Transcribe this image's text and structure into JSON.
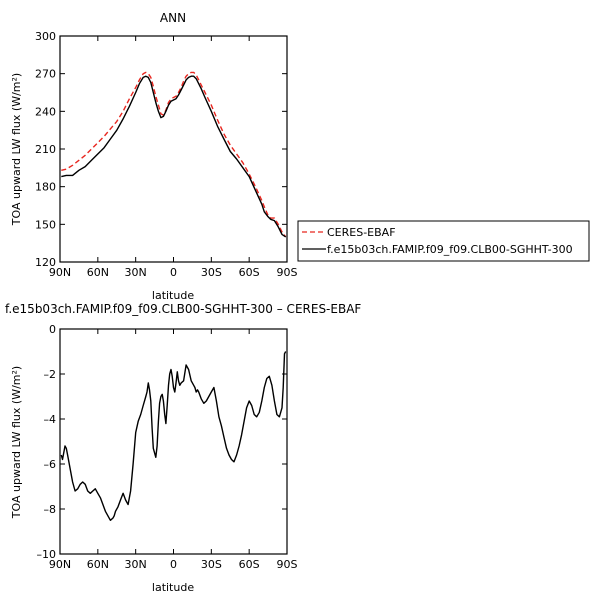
{
  "chart_data": [
    {
      "type": "line",
      "title": "ANN",
      "xlabel": "latitude",
      "ylabel": "TOA upward LW flux (W/m²)",
      "xlim": [
        90,
        -90
      ],
      "ylim": [
        120,
        300
      ],
      "xticks": [
        90,
        60,
        30,
        0,
        -30,
        -60,
        -90
      ],
      "xtick_labels": [
        "90N",
        "60N",
        "30N",
        "0",
        "30S",
        "60S",
        "90S"
      ],
      "yticks": [
        120,
        150,
        180,
        210,
        240,
        270,
        300
      ],
      "ytick_labels": [
        "120",
        "150",
        "180",
        "210",
        "240",
        "270",
        "300"
      ],
      "legend_position": "right",
      "colors": {
        "CERES-EBAF": "#e8261f",
        "model": "#000000"
      },
      "series": [
        {
          "name": "CERES-EBAF",
          "style": "dashed",
          "x": [
            89,
            85,
            80,
            75,
            70,
            65,
            60,
            55,
            50,
            45,
            40,
            35,
            30,
            27,
            24,
            22,
            20,
            18,
            16,
            14,
            12,
            10,
            8,
            6,
            4,
            2,
            0,
            -2,
            -4,
            -6,
            -8,
            -10,
            -12,
            -14,
            -16,
            -18,
            -20,
            -22,
            -25,
            -30,
            -35,
            -40,
            -45,
            -50,
            -55,
            -60,
            -65,
            -70,
            -72,
            -75,
            -77,
            -80,
            -83,
            -86,
            -89
          ],
          "y": [
            193,
            194,
            197,
            201,
            205,
            210,
            215,
            220,
            226,
            232,
            240,
            250,
            259,
            265,
            270,
            271,
            270,
            267,
            260,
            252,
            245,
            238,
            237,
            241,
            247,
            250,
            251,
            252,
            255,
            259,
            264,
            268,
            270,
            271,
            271,
            269,
            265,
            261,
            255,
            245,
            233,
            222,
            213,
            206,
            199,
            190,
            180,
            169,
            164,
            157,
            155,
            155,
            150,
            144,
            140
          ]
        },
        {
          "name": "f.e15b03ch.FAMIP.f09_f09.CLB00-SGHHT-300",
          "style": "solid",
          "x": [
            89,
            85,
            80,
            75,
            70,
            65,
            60,
            55,
            50,
            45,
            40,
            35,
            30,
            27,
            24,
            22,
            20,
            18,
            16,
            14,
            12,
            10,
            8,
            6,
            4,
            2,
            0,
            -2,
            -4,
            -6,
            -8,
            -10,
            -12,
            -14,
            -16,
            -18,
            -20,
            -22,
            -25,
            -30,
            -35,
            -40,
            -45,
            -50,
            -55,
            -60,
            -65,
            -70,
            -72,
            -75,
            -77,
            -80,
            -83,
            -86,
            -89
          ],
          "y": [
            188,
            189,
            189,
            193,
            196,
            201,
            206,
            211,
            218,
            225,
            234,
            244,
            255,
            262,
            267,
            268,
            267,
            263,
            255,
            247,
            240,
            235,
            236,
            240,
            245,
            248,
            249,
            250,
            253,
            257,
            261,
            265,
            267,
            268,
            268,
            266,
            262,
            258,
            251,
            240,
            228,
            218,
            208,
            202,
            195,
            188,
            177,
            166,
            160,
            156,
            154,
            153,
            148,
            142,
            140
          ]
        }
      ]
    },
    {
      "type": "line",
      "title": "f.e15b03ch.FAMIP.f09_f09.CLB00-SGHHT-300 – CERES-EBAF",
      "xlabel": "latitude",
      "ylabel": "TOA upward LW flux (W/m²)",
      "xlim": [
        90,
        -90
      ],
      "ylim": [
        -10,
        0
      ],
      "xticks": [
        90,
        60,
        30,
        0,
        -30,
        -60,
        -90
      ],
      "xtick_labels": [
        "90N",
        "60N",
        "30N",
        "0",
        "30S",
        "60S",
        "90S"
      ],
      "yticks": [
        -10,
        -8,
        -6,
        -4,
        -2,
        0
      ],
      "ytick_labels": [
        "–10",
        "–8",
        "–6",
        "–4",
        "–2",
        "0"
      ],
      "series": [
        {
          "style": "solid",
          "x": [
            89,
            88,
            86,
            85,
            84,
            82,
            80,
            78,
            76,
            74,
            72,
            70,
            68,
            66,
            64,
            62,
            60,
            58,
            56,
            54,
            52,
            50,
            48,
            47,
            46,
            44,
            42,
            40,
            38,
            36,
            34,
            32,
            30,
            28,
            26,
            24,
            22,
            21,
            20,
            19,
            18,
            17,
            16,
            14,
            13,
            12,
            11,
            10,
            9,
            8,
            7,
            6,
            5,
            4,
            3,
            2,
            1,
            0,
            -1,
            -2,
            -3,
            -4,
            -5,
            -6,
            -8,
            -10,
            -12,
            -14,
            -16,
            -17,
            -18,
            -19,
            -20,
            -22,
            -24,
            -26,
            -28,
            -30,
            -32,
            -34,
            -36,
            -38,
            -40,
            -42,
            -44,
            -46,
            -48,
            -50,
            -52,
            -54,
            -56,
            -58,
            -60,
            -62,
            -64,
            -66,
            -68,
            -70,
            -72,
            -74,
            -76,
            -78,
            -80,
            -82,
            -84,
            -86,
            -87,
            -88,
            -89
          ],
          "y": [
            -5.6,
            -5.8,
            -5.2,
            -5.3,
            -5.6,
            -6.2,
            -6.8,
            -7.2,
            -7.1,
            -6.9,
            -6.8,
            -6.9,
            -7.2,
            -7.3,
            -7.2,
            -7.1,
            -7.3,
            -7.5,
            -7.8,
            -8.1,
            -8.3,
            -8.5,
            -8.4,
            -8.3,
            -8.1,
            -7.9,
            -7.6,
            -7.3,
            -7.6,
            -7.8,
            -7.2,
            -6.0,
            -4.6,
            -4.1,
            -3.8,
            -3.4,
            -3.0,
            -2.8,
            -2.4,
            -2.7,
            -3.2,
            -4.4,
            -5.3,
            -5.7,
            -5.2,
            -4.1,
            -3.3,
            -3.0,
            -2.9,
            -3.2,
            -3.8,
            -4.2,
            -3.4,
            -2.5,
            -2.0,
            -1.8,
            -2.1,
            -2.6,
            -2.8,
            -2.4,
            -1.9,
            -2.3,
            -2.5,
            -2.4,
            -2.3,
            -1.6,
            -1.8,
            -2.3,
            -2.5,
            -2.6,
            -2.8,
            -2.7,
            -2.8,
            -3.1,
            -3.3,
            -3.2,
            -3.0,
            -2.8,
            -2.6,
            -3.2,
            -3.9,
            -4.3,
            -4.8,
            -5.3,
            -5.6,
            -5.8,
            -5.9,
            -5.6,
            -5.2,
            -4.7,
            -4.1,
            -3.5,
            -3.2,
            -3.4,
            -3.8,
            -3.9,
            -3.7,
            -3.2,
            -2.6,
            -2.2,
            -2.1,
            -2.5,
            -3.2,
            -3.8,
            -3.9,
            -3.5,
            -2.6,
            -1.1,
            -1.0
          ]
        }
      ]
    }
  ],
  "legend": {
    "entries": [
      "CERES-EBAF",
      "f.e15b03ch.FAMIP.f09_f09.CLB00-SGHHT-300"
    ]
  }
}
